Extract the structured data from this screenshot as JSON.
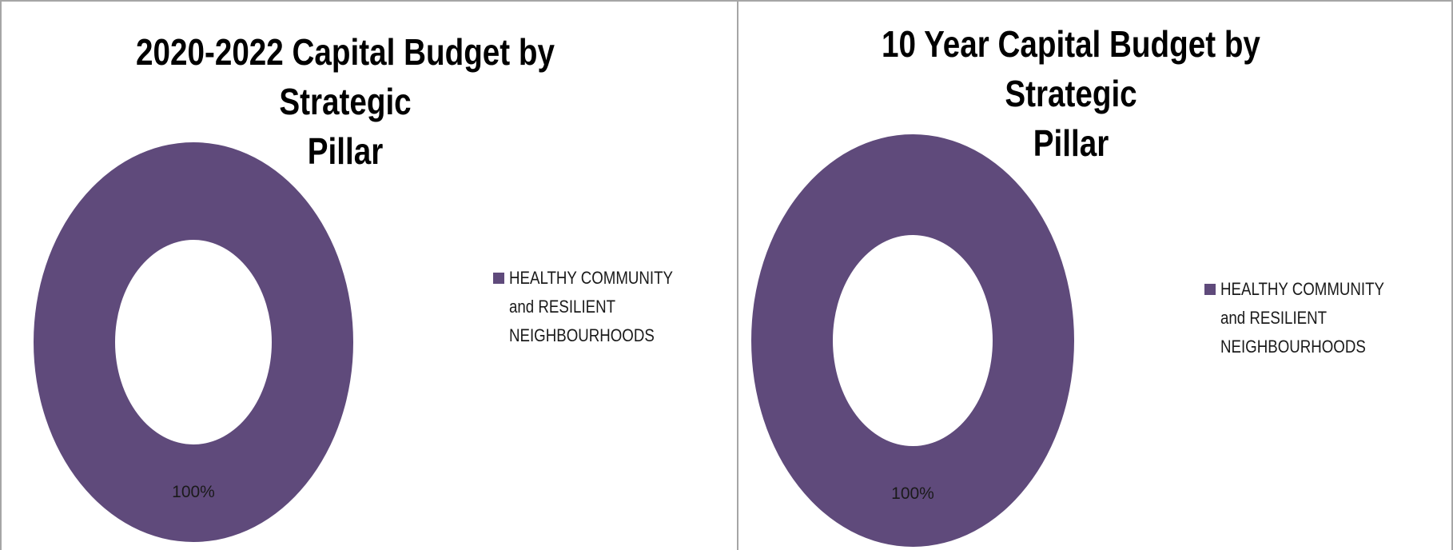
{
  "chart_data": [
    {
      "type": "pie",
      "donut": true,
      "title": "2020-2022 Capital Budget by Strategic\nPillar",
      "categories": [
        "HEALTHY COMMUNITY and RESILIENT NEIGHBOURHOODS"
      ],
      "values": [
        100
      ],
      "data_labels": [
        "100%"
      ],
      "legend_entries": [
        "HEALTHY COMMUNITY\nand RESILIENT\nNEIGHBOURHOODS"
      ],
      "colors": [
        "#5f4a7b"
      ],
      "legend": "right"
    },
    {
      "type": "pie",
      "donut": true,
      "title": "10 Year Capital Budget by Strategic\nPillar",
      "categories": [
        "HEALTHY COMMUNITY and RESILIENT NEIGHBOURHOODS"
      ],
      "values": [
        100
      ],
      "data_labels": [
        "100%"
      ],
      "legend_entries": [
        "HEALTHY COMMUNITY\nand RESILIENT\nNEIGHBOURHOODS"
      ],
      "colors": [
        "#5f4a7b"
      ],
      "legend": "right"
    }
  ]
}
